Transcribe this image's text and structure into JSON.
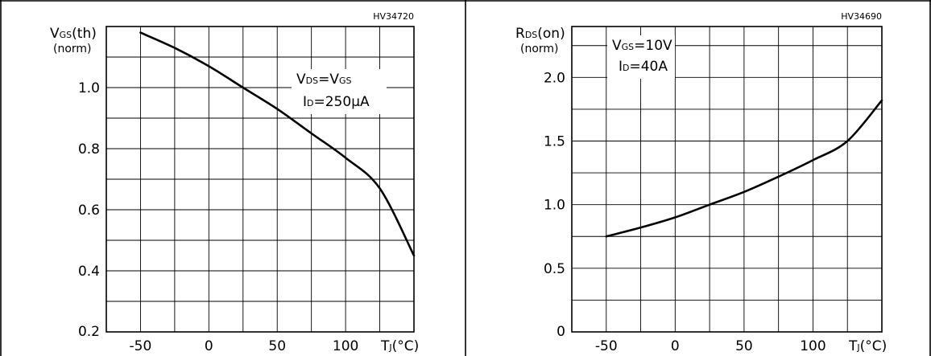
{
  "chart_data": [
    {
      "type": "line",
      "code": "HV34720",
      "ylabel": {
        "main": "V",
        "sub": "GS",
        "tail": "(th)",
        "norm": "(norm)"
      },
      "xlabel": {
        "main": "T",
        "sub": "J",
        "tail": "(°C)"
      },
      "annotation": [
        {
          "main": "V",
          "sub": "DS",
          "mid": "=V",
          "sub2": "GS",
          "tail": ""
        },
        {
          "main": "I",
          "sub": "D",
          "mid": "=250µA",
          "sub2": "",
          "tail": ""
        }
      ],
      "xlim": [
        -75,
        150
      ],
      "ylim": [
        0.2,
        1.2
      ],
      "xticks": [
        -50,
        0,
        50,
        100
      ],
      "xtick_labels": [
        "-50",
        "0",
        "50",
        "100"
      ],
      "yticks": [
        0.4,
        0.6,
        0.8,
        1.0
      ],
      "ytick_labels": [
        "0.4",
        "0.6",
        "0.8",
        "1.0"
      ],
      "ymin_label": "0.2",
      "grid": true,
      "series": [
        {
          "x": [
            -50,
            -25,
            0,
            25,
            50,
            75,
            100,
            125,
            150
          ],
          "y": [
            1.18,
            1.13,
            1.07,
            1.0,
            0.93,
            0.85,
            0.77,
            0.67,
            0.45
          ]
        }
      ]
    },
    {
      "type": "line",
      "code": "HV34690",
      "ylabel": {
        "main": "R",
        "sub": "DS",
        "tail": "(on)",
        "norm": "(norm)"
      },
      "xlabel": {
        "main": "T",
        "sub": "J",
        "tail": "(°C)"
      },
      "annotation": [
        {
          "main": "V",
          "sub": "GS",
          "mid": "=10V",
          "sub2": "",
          "tail": ""
        },
        {
          "main": "I",
          "sub": "D",
          "mid": "=40A",
          "sub2": "",
          "tail": ""
        }
      ],
      "xlim": [
        -75,
        150
      ],
      "ylim": [
        0,
        2.4
      ],
      "xticks": [
        -50,
        0,
        50,
        100
      ],
      "xtick_labels": [
        "-50",
        "0",
        "50",
        "100"
      ],
      "yticks": [
        0.5,
        1.0,
        1.5,
        2.0
      ],
      "ytick_labels": [
        "0.5",
        "1.0",
        "1.5",
        "2.0"
      ],
      "ymin_label": "0",
      "grid": true,
      "series": [
        {
          "x": [
            -50,
            -25,
            0,
            25,
            50,
            75,
            100,
            125,
            150
          ],
          "y": [
            0.75,
            0.82,
            0.9,
            1.0,
            1.1,
            1.22,
            1.35,
            1.5,
            1.82
          ]
        }
      ]
    }
  ]
}
